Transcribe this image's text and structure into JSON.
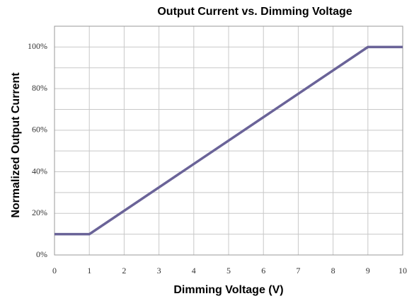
{
  "chart_data": {
    "type": "line",
    "title": "Output Current vs. Dimming Voltage",
    "x_label": "Dimming Voltage (V)",
    "y_label": "Normalized Output Current",
    "x": [
      0,
      1,
      9,
      10
    ],
    "series": [
      {
        "name": "Output Current",
        "color": "#6a6398",
        "values": [
          10,
          10,
          100,
          100
        ]
      }
    ],
    "xlim": [
      0,
      10
    ],
    "xticks": [
      0,
      1,
      2,
      3,
      4,
      5,
      6,
      7,
      8,
      9,
      10
    ],
    "ylim": [
      0,
      110
    ],
    "yticks": [
      {
        "value": 0,
        "label": "0%"
      },
      {
        "value": 20,
        "label": "20%"
      },
      {
        "value": 40,
        "label": "40%"
      },
      {
        "value": 60,
        "label": "60%"
      },
      {
        "value": 80,
        "label": "80%"
      },
      {
        "value": 100,
        "label": "100%"
      }
    ],
    "yminorticks": [
      10,
      30,
      50,
      70,
      90
    ],
    "grid": true
  }
}
